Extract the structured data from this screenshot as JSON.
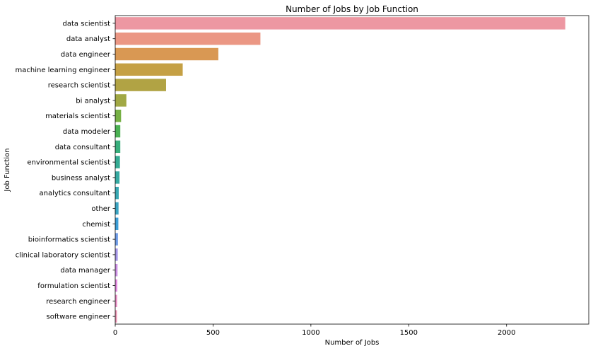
{
  "chart_data": {
    "type": "bar",
    "orientation": "horizontal",
    "title": "Number of Jobs by Job Function",
    "xlabel": "Number of Jobs",
    "ylabel": "Job Function",
    "xlim": [
      0,
      2420
    ],
    "xticks": [
      0,
      500,
      1000,
      1500,
      2000
    ],
    "grid": false,
    "categories": [
      "data scientist",
      "data analyst",
      "data engineer",
      "machine learning engineer",
      "research scientist",
      "bi analyst",
      "materials scientist",
      "data modeler",
      "data consultant",
      "environmental scientist",
      "business analyst",
      "analytics consultant",
      "other",
      "chemist",
      "bioinformatics scientist",
      "clinical laboratory scientist",
      "data manager",
      "formulation scientist",
      "research engineer",
      "software engineer"
    ],
    "values": [
      2300,
      742,
      527,
      345,
      260,
      57,
      30,
      26,
      26,
      24,
      22,
      18,
      17,
      16,
      14,
      13,
      12,
      11,
      10,
      9
    ],
    "colors": [
      "#ed97a2",
      "#eb9784",
      "#d99853",
      "#c5a044",
      "#b1a344",
      "#a1a844",
      "#76b044",
      "#4bb153",
      "#38ae7c",
      "#34ab93",
      "#36aaa2",
      "#38a8b3",
      "#3aa4c2",
      "#3c9ed7",
      "#6e9be7",
      "#a495e7",
      "#cb8fe4",
      "#e38be0",
      "#e98fc6",
      "#eb92b2"
    ]
  }
}
